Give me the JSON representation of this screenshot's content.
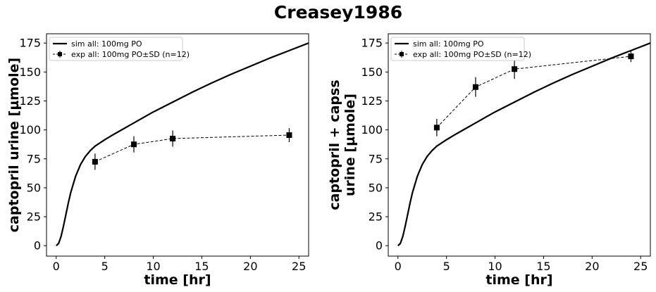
{
  "figure_title": "Creasey1986",
  "chart_data": [
    {
      "type": "line",
      "xlabel": "time [hr]",
      "ylabel": "captopril urine [µmole]",
      "xlim": [
        -1,
        26
      ],
      "ylim": [
        -9,
        183
      ],
      "xticks": [
        0,
        5,
        10,
        15,
        20,
        25
      ],
      "yticks": [
        0,
        25,
        50,
        75,
        100,
        125,
        150,
        175
      ],
      "grid": false,
      "legend_position": "top-left",
      "series": [
        {
          "name": "sim all: 100mg PO",
          "style": "solid",
          "color": "#000000",
          "x": [
            0,
            0.25,
            0.5,
            0.75,
            1,
            1.25,
            1.5,
            2,
            2.5,
            3,
            3.5,
            4,
            5,
            6,
            8,
            10,
            12,
            14,
            16,
            18,
            20,
            22,
            24,
            26
          ],
          "y": [
            0,
            2,
            8,
            17,
            27,
            37,
            46,
            60,
            70,
            77,
            82,
            86,
            91.5,
            96.5,
            106,
            115.5,
            124,
            132.5,
            140.5,
            148,
            155,
            162,
            168.5,
            175
          ]
        },
        {
          "name": "exp all: 100mg PO±SD (n=12)",
          "style": "dashed",
          "marker": "square",
          "color": "#000000",
          "x": [
            4,
            8,
            12,
            24
          ],
          "y": [
            72.5,
            87.5,
            92.5,
            95.5
          ],
          "sd": [
            7,
            7,
            7,
            6
          ]
        }
      ]
    },
    {
      "type": "line",
      "xlabel": "time [hr]",
      "ylabel_lines": [
        "captopril + capss",
        "urine [µmole]"
      ],
      "xlim": [
        -1,
        26
      ],
      "ylim": [
        -9,
        183
      ],
      "xticks": [
        0,
        5,
        10,
        15,
        20,
        25
      ],
      "yticks": [
        0,
        25,
        50,
        75,
        100,
        125,
        150,
        175
      ],
      "grid": false,
      "legend_position": "top-left",
      "series": [
        {
          "name": "sim all: 100mg PO",
          "style": "solid",
          "color": "#000000",
          "x": [
            0,
            0.25,
            0.5,
            0.75,
            1,
            1.25,
            1.5,
            2,
            2.5,
            3,
            3.5,
            4,
            5,
            6,
            8,
            10,
            12,
            14,
            16,
            18,
            20,
            22,
            24,
            26
          ],
          "y": [
            0,
            2,
            8,
            17,
            27,
            37,
            46,
            60,
            70,
            77,
            82,
            86,
            91.5,
            96.5,
            106,
            115.5,
            124,
            132.5,
            140.5,
            148,
            155,
            162,
            168.5,
            175
          ]
        },
        {
          "name": "exp all: 100mg PO±SD (n=12)",
          "style": "dashed",
          "marker": "square",
          "color": "#000000",
          "x": [
            4,
            8,
            12,
            24
          ],
          "y": [
            102,
            137,
            152.5,
            163.5
          ],
          "sd": [
            7.5,
            8.5,
            8.5,
            5
          ]
        }
      ]
    }
  ]
}
